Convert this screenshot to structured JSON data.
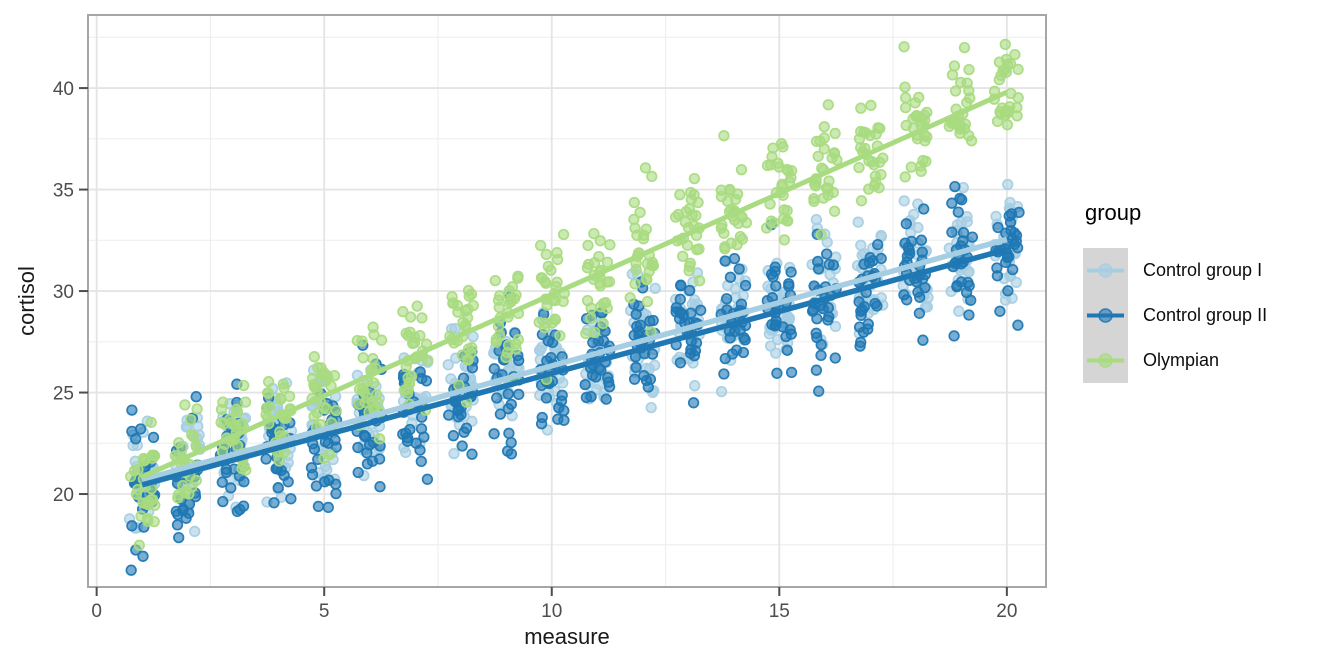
{
  "colors": {
    "background": "#FFFFFF",
    "grid_major": "#E4E4E4",
    "grid_minor": "#EFEFEF",
    "panel_border": "#A6A6A6",
    "tick_mark": "#4D4D4D",
    "tick_label": "#4D4D4D",
    "axis_title": "#1A1A1A",
    "legend_key_bg": "#D5D5D5",
    "control_group_1": "#A6CEE3",
    "control_group_2": "#1F78B4",
    "olympian": "#A9DB80"
  },
  "chart_data": {
    "type": "scatter",
    "title": "",
    "xlabel": "measure",
    "ylabel": "cortisol",
    "legend_title": "group",
    "legend_position": "right",
    "grid": true,
    "xlim": [
      -0.19,
      20.86
    ],
    "ylim": [
      15.42,
      43.6
    ],
    "x_ticks": [
      0,
      5,
      10,
      15,
      20
    ],
    "y_ticks": [
      20,
      25,
      30,
      35,
      40
    ],
    "x_minor_ticks": [
      2.5,
      7.5,
      12.5,
      17.5
    ],
    "y_minor_ticks": [
      17.5,
      22.5,
      27.5,
      32.5,
      37.5,
      42.5
    ],
    "x_values": [
      1,
      2,
      3,
      4,
      5,
      6,
      7,
      8,
      9,
      10,
      11,
      12,
      13,
      14,
      15,
      16,
      17,
      18,
      19,
      20
    ],
    "points_per_cluster": 28,
    "jitter_width": 0.28,
    "point_radius": 4.8,
    "point_fill_opacity": 0.6,
    "point_stroke_opacity": 0.95,
    "seed": 20,
    "clamp_y": [
      15.75,
      42.85
    ],
    "series": [
      {
        "name": "Control group I",
        "color": "#A6CEE3",
        "intercept": 20.08,
        "slope": 0.625,
        "sd": 1.4,
        "trend": {
          "x": [
            1,
            20
          ],
          "y": [
            20.7,
            32.55
          ]
        },
        "line_width": 5.5,
        "means_by_x": [
          20.7,
          21.3,
          22.0,
          22.6,
          23.2,
          23.8,
          24.5,
          25.1,
          25.7,
          26.3,
          27.0,
          27.6,
          28.2,
          28.8,
          29.5,
          30.1,
          30.7,
          31.3,
          32.0,
          32.6
        ]
      },
      {
        "name": "Control group II",
        "color": "#1F78B4",
        "intercept": 19.84,
        "slope": 0.61,
        "sd": 1.45,
        "trend": {
          "x": [
            1,
            20
          ],
          "y": [
            20.45,
            32.05
          ]
        },
        "line_width": 5.5,
        "means_by_x": [
          20.5,
          21.1,
          21.7,
          22.3,
          22.9,
          23.5,
          24.1,
          24.7,
          25.3,
          25.9,
          26.6,
          27.2,
          27.8,
          28.4,
          29.0,
          29.6,
          30.2,
          30.8,
          31.4,
          32.0
        ]
      },
      {
        "name": "Olympian",
        "color": "#A9DB80",
        "intercept": 19.85,
        "slope": 1.0,
        "sd": 1.3,
        "trend": {
          "x": [
            1,
            20
          ],
          "y": [
            20.85,
            39.8
          ]
        },
        "line_width": 5.0,
        "means_by_x": [
          20.9,
          21.9,
          22.9,
          23.9,
          24.9,
          25.9,
          26.9,
          27.9,
          28.9,
          29.9,
          30.9,
          31.9,
          32.9,
          33.9,
          34.9,
          35.9,
          36.9,
          37.9,
          38.9,
          39.9
        ]
      }
    ]
  }
}
